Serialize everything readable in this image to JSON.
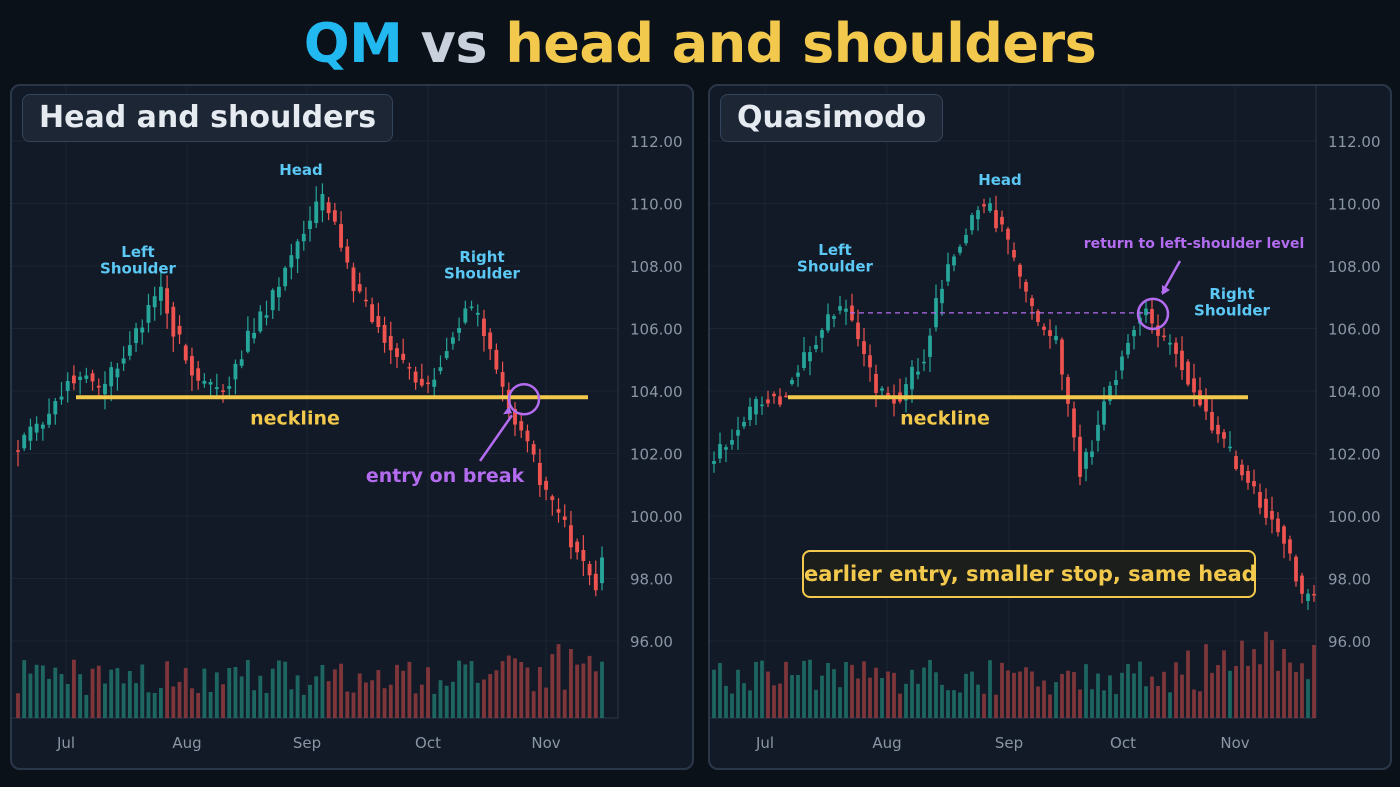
{
  "page": {
    "title_part1": "QM",
    "title_part2": "vs",
    "title_part3": "head and shoulders"
  },
  "colors": {
    "background": "#0b1119",
    "panel": "#111a26",
    "bull": "#26a69a",
    "bear": "#ef5350",
    "neckline": "#f2c94c",
    "label_blue": "#5bc8f5",
    "annotation_purple": "#b36cf0",
    "title_qm": "#22b8f0",
    "title_vs": "#c9d1dc",
    "title_hs": "#f2c94c"
  },
  "chart_data": [
    {
      "type": "candlestick",
      "title": "Head and shoulders",
      "x_tick_labels": [
        "Jul",
        "Aug",
        "Sep",
        "Oct",
        "Nov"
      ],
      "y_tick_labels": [
        "112.00",
        "110.00",
        "108.00",
        "106.00",
        "104.00",
        "102.00",
        "100.00",
        "98.00",
        "96.00"
      ],
      "ylim": [
        96,
        112
      ],
      "grid": true,
      "close_path": [
        [
          0,
          102.2
        ],
        [
          4,
          103.0
        ],
        [
          8,
          104.4
        ],
        [
          11,
          104.5
        ],
        [
          13,
          103.9
        ],
        [
          17,
          105.2
        ],
        [
          21,
          106.6
        ],
        [
          23,
          107.2
        ],
        [
          25,
          106.0
        ],
        [
          29,
          104.3
        ],
        [
          33,
          104.0
        ],
        [
          37,
          105.7
        ],
        [
          40,
          106.6
        ],
        [
          44,
          108.3
        ],
        [
          47,
          109.5
        ],
        [
          49,
          110.1
        ],
        [
          51,
          109.3
        ],
        [
          54,
          107.3
        ],
        [
          58,
          106.1
        ],
        [
          62,
          104.8
        ],
        [
          66,
          104.1
        ],
        [
          69,
          105.4
        ],
        [
          72,
          106.7
        ],
        [
          74,
          106.3
        ],
        [
          77,
          104.7
        ],
        [
          79,
          103.5
        ],
        [
          82,
          102.4
        ],
        [
          85,
          100.6
        ],
        [
          88,
          99.6
        ],
        [
          91,
          98.4
        ],
        [
          93,
          97.8
        ],
        [
          94,
          98.4
        ]
      ],
      "volume_range": [
        0.25,
        0.95
      ],
      "pattern_labels": {
        "left_shoulder": "Left\nShoulder",
        "head": "Head",
        "right_shoulder": "Right\nShoulder"
      },
      "neckline": {
        "level": 103.8,
        "label": "neckline"
      },
      "annotations": {
        "entry": "entry on break"
      }
    },
    {
      "type": "candlestick",
      "title": "Quasimodo",
      "x_tick_labels": [
        "Jul",
        "Aug",
        "Sep",
        "Oct",
        "Nov"
      ],
      "y_tick_labels": [
        "112.00",
        "110.00",
        "108.00",
        "106.00",
        "104.00",
        "102.00",
        "100.00",
        "98.00",
        "96.00"
      ],
      "ylim": [
        96,
        112
      ],
      "grid": true,
      "close_path": [
        [
          0,
          101.9
        ],
        [
          4,
          102.8
        ],
        [
          8,
          103.8
        ],
        [
          11,
          103.8
        ],
        [
          13,
          104.4
        ],
        [
          17,
          105.6
        ],
        [
          20,
          106.6
        ],
        [
          22,
          106.7
        ],
        [
          24,
          105.7
        ],
        [
          27,
          104.0
        ],
        [
          31,
          103.8
        ],
        [
          35,
          105.2
        ],
        [
          38,
          107.5
        ],
        [
          41,
          108.8
        ],
        [
          44,
          109.9
        ],
        [
          46,
          109.8
        ],
        [
          48,
          109.1
        ],
        [
          51,
          107.6
        ],
        [
          54,
          106.0
        ],
        [
          57,
          105.6
        ],
        [
          59,
          103.5
        ],
        [
          61,
          101.4
        ],
        [
          63,
          102.3
        ],
        [
          65,
          103.8
        ],
        [
          67,
          104.6
        ],
        [
          70,
          106.2
        ],
        [
          72,
          106.6
        ],
        [
          74,
          105.7
        ],
        [
          77,
          105.4
        ],
        [
          79,
          104.4
        ],
        [
          81,
          103.7
        ],
        [
          84,
          102.6
        ],
        [
          87,
          101.7
        ],
        [
          90,
          100.7
        ],
        [
          94,
          99.6
        ],
        [
          96,
          98.8
        ],
        [
          98,
          97.4
        ],
        [
          100,
          97.4
        ]
      ],
      "volume_range": [
        0.25,
        0.95
      ],
      "pattern_labels": {
        "left_shoulder": "Left\nShoulder",
        "head": "Head",
        "right_shoulder": "Right\nShoulder"
      },
      "neckline": {
        "level": 103.8,
        "label": "neckline"
      },
      "left_shoulder_level": 106.5,
      "annotations": {
        "return": "return to left-shoulder level",
        "callout": "earlier entry, smaller stop, same head"
      }
    }
  ]
}
